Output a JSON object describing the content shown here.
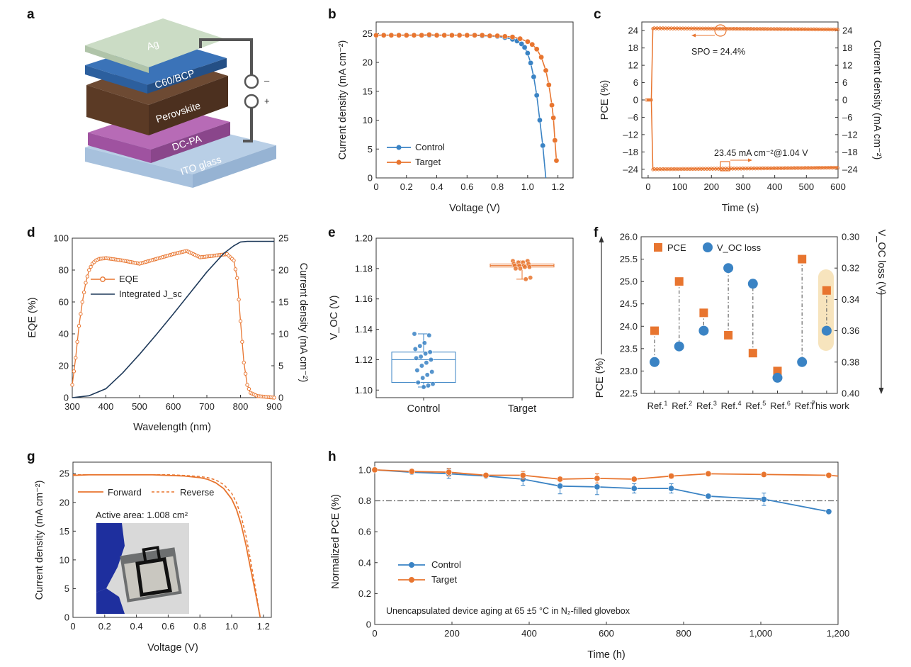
{
  "colors": {
    "control": "#3a83c4",
    "target": "#e8752f",
    "integrated_jsc": "#1f3a5a",
    "this_work": "#d62c2c",
    "highlight": "#f7e4bd",
    "reference_line": "#666666"
  },
  "chart_data": [
    {
      "panel": "a",
      "type": "diagram",
      "layers": [
        "Ag",
        "C60/BCP",
        "Perovskite",
        "DC-PA",
        "ITO glass"
      ],
      "terminal_minus": "–",
      "terminal_plus": "+"
    },
    {
      "panel": "b",
      "type": "line",
      "xlabel": "Voltage (V)",
      "ylabel": "Current density (mA cm⁻²)",
      "xlim": [
        0,
        1.3
      ],
      "ylim": [
        0,
        27
      ],
      "xticks": [
        "0",
        "0.2",
        "0.4",
        "0.6",
        "0.8",
        "1.0",
        "1.2"
      ],
      "yticks": [
        "0",
        "5",
        "10",
        "15",
        "20",
        "25"
      ],
      "legend_position": "bottom-left",
      "series": [
        {
          "name": "Control",
          "x": [
            0,
            0.05,
            0.1,
            0.15,
            0.2,
            0.25,
            0.3,
            0.35,
            0.4,
            0.45,
            0.5,
            0.55,
            0.6,
            0.65,
            0.7,
            0.75,
            0.8,
            0.85,
            0.9,
            0.93,
            0.96,
            0.98,
            1.0,
            1.02,
            1.04,
            1.06,
            1.08,
            1.1,
            1.12
          ],
          "y": [
            24.7,
            24.7,
            24.7,
            24.7,
            24.7,
            24.7,
            24.7,
            24.7,
            24.7,
            24.7,
            24.7,
            24.7,
            24.7,
            24.7,
            24.6,
            24.6,
            24.5,
            24.3,
            24.0,
            23.7,
            23.2,
            22.6,
            21.6,
            19.9,
            17.5,
            14.3,
            10.0,
            5.6,
            0
          ]
        },
        {
          "name": "Target",
          "x": [
            0,
            0.05,
            0.1,
            0.15,
            0.2,
            0.25,
            0.3,
            0.35,
            0.4,
            0.45,
            0.5,
            0.55,
            0.6,
            0.65,
            0.7,
            0.75,
            0.8,
            0.85,
            0.9,
            0.95,
            1.0,
            1.03,
            1.06,
            1.09,
            1.12,
            1.14,
            1.16,
            1.17,
            1.18,
            1.19
          ],
          "y": [
            24.7,
            24.7,
            24.7,
            24.7,
            24.7,
            24.7,
            24.7,
            24.8,
            24.7,
            24.7,
            24.7,
            24.7,
            24.7,
            24.7,
            24.7,
            24.6,
            24.6,
            24.5,
            24.4,
            24.1,
            23.6,
            23.1,
            22.3,
            20.9,
            18.6,
            16.1,
            12.6,
            10.4,
            6.5,
            3.0
          ]
        }
      ]
    },
    {
      "panel": "c",
      "type": "line",
      "xlabel": "Time (s)",
      "ylabel": "PCE (%)",
      "ylabel_right": "Current density (mA cm⁻²)",
      "xlim": [
        -20,
        600
      ],
      "ylim": [
        -27,
        27
      ],
      "xticks": [
        "0",
        "100",
        "200",
        "300",
        "400",
        "500",
        "600"
      ],
      "yticks": [
        "–24",
        "–18",
        "–12",
        "–6",
        "0",
        "6",
        "12",
        "18",
        "24"
      ],
      "yticks_right": [
        "–24",
        "–18",
        "–12",
        "–6",
        "0",
        "6",
        "12",
        "18",
        "24"
      ],
      "annotations": [
        "SPO = 24.4%",
        "23.45 mA cm⁻²@1.04 V"
      ],
      "series": [
        {
          "name": "PCE",
          "x": [
            -5,
            10,
            15,
            600
          ],
          "y": [
            0,
            0,
            24.8,
            24.4
          ]
        },
        {
          "name": "Current density",
          "x": [
            -5,
            10,
            15,
            600
          ],
          "y": [
            0,
            0,
            -24.0,
            -23.45
          ]
        }
      ]
    },
    {
      "panel": "d",
      "type": "line",
      "xlabel": "Wavelength (nm)",
      "ylabel": "EQE (%)",
      "ylabel_right": "Current density (mA cm⁻²)",
      "xlim": [
        300,
        900
      ],
      "ylim": [
        0,
        100
      ],
      "ylim_right": [
        0,
        25
      ],
      "xticks": [
        "300",
        "400",
        "500",
        "600",
        "700",
        "800",
        "900"
      ],
      "yticks": [
        "0",
        "20",
        "40",
        "60",
        "80",
        "100"
      ],
      "yticks_right": [
        "0",
        "5",
        "10",
        "15",
        "20",
        "25"
      ],
      "legend_position": "top-left",
      "series": [
        {
          "name": "EQE",
          "x": [
            300,
            310,
            320,
            330,
            340,
            350,
            360,
            370,
            380,
            400,
            450,
            500,
            550,
            600,
            640,
            680,
            720,
            760,
            780,
            790,
            800,
            810,
            820,
            830,
            850,
            900
          ],
          "y": [
            8,
            25,
            45,
            60,
            72,
            80,
            84,
            86,
            87,
            87.5,
            86,
            84,
            87,
            90,
            92,
            88,
            89,
            90,
            86,
            75,
            48,
            22,
            8,
            3,
            1,
            0
          ]
        },
        {
          "name": "Integrated J_sc",
          "x": [
            300,
            350,
            400,
            450,
            500,
            550,
            600,
            650,
            700,
            750,
            780,
            800,
            820,
            900
          ],
          "y": [
            0,
            0.3,
            1.4,
            3.9,
            6.8,
            9.9,
            13.1,
            16.4,
            19.7,
            22.6,
            23.8,
            24.4,
            24.5,
            24.5
          ]
        }
      ]
    },
    {
      "panel": "e",
      "type": "box",
      "ylabel": "V_OC (V)",
      "ylim": [
        1.095,
        1.2
      ],
      "yticks": [
        "1.10",
        "1.12",
        "1.14",
        "1.16",
        "1.18",
        "1.20"
      ],
      "categories": [
        "Control",
        "Target"
      ],
      "boxes": [
        {
          "name": "Control",
          "whisker_low": 1.102,
          "q1": 1.105,
          "median": 1.12,
          "q3": 1.125,
          "whisker_high": 1.137,
          "points": [
            1.137,
            1.136,
            1.131,
            1.129,
            1.127,
            1.125,
            1.124,
            1.122,
            1.121,
            1.12,
            1.118,
            1.116,
            1.113,
            1.112,
            1.11,
            1.108,
            1.105,
            1.104,
            1.103,
            1.102
          ]
        },
        {
          "name": "Target",
          "whisker_low": 1.173,
          "q1": 1.181,
          "median": 1.182,
          "q3": 1.183,
          "whisker_high": 1.185,
          "points": [
            1.185,
            1.185,
            1.184,
            1.184,
            1.183,
            1.183,
            1.182,
            1.182,
            1.182,
            1.181,
            1.181,
            1.18,
            1.18,
            1.174,
            1.173
          ]
        }
      ]
    },
    {
      "panel": "f",
      "type": "scatter",
      "ylabel": "PCE (%)",
      "ylabel_right": "V_OC loss (V)",
      "ylim": [
        22.5,
        26.0
      ],
      "ylim_right": [
        0.4,
        0.3
      ],
      "yticks": [
        "22.5",
        "23.0",
        "23.5",
        "24.0",
        "24.5",
        "25.0",
        "25.5",
        "26.0"
      ],
      "yticks_right": [
        "0.30",
        "0.32",
        "0.34",
        "0.36",
        "0.38",
        "0.40"
      ],
      "categories": [
        "Ref. 1",
        "Ref. 2",
        "Ref. 3",
        "Ref. 4",
        "Ref. 5",
        "Ref. 6",
        "Ref. 7",
        "This work"
      ],
      "category_base": [
        "Ref.",
        "Ref.",
        "Ref.",
        "Ref.",
        "Ref.",
        "Ref.",
        "Ref.",
        "This work"
      ],
      "category_sup": [
        "1",
        "2",
        "3",
        "4",
        "5",
        "6",
        "7",
        ""
      ],
      "legend_position": "top-left",
      "series": [
        {
          "name": "PCE",
          "values": [
            23.9,
            25.0,
            24.3,
            23.8,
            23.4,
            23.0,
            25.5,
            24.8
          ]
        },
        {
          "name": "V_OC loss",
          "values": [
            0.38,
            0.37,
            0.36,
            0.32,
            0.33,
            0.39,
            0.38,
            0.36
          ]
        }
      ]
    },
    {
      "panel": "g",
      "type": "line",
      "xlabel": "Voltage (V)",
      "ylabel": "Current density (mA cm⁻²)",
      "xlim": [
        0,
        1.25
      ],
      "ylim": [
        0,
        27
      ],
      "xticks": [
        "0",
        "0.2",
        "0.4",
        "0.6",
        "0.8",
        "1.0",
        "1.2"
      ],
      "yticks": [
        "0",
        "5",
        "10",
        "15",
        "20",
        "25"
      ],
      "inset_text": "Active area: 1.008 cm²",
      "legend_position": "top",
      "series": [
        {
          "name": "Forward",
          "x": [
            0,
            0.1,
            0.2,
            0.3,
            0.4,
            0.5,
            0.6,
            0.7,
            0.8,
            0.85,
            0.9,
            0.95,
            1.0,
            1.03,
            1.06,
            1.09,
            1.12,
            1.15,
            1.18
          ],
          "y": [
            24.7,
            24.8,
            24.8,
            24.8,
            24.8,
            24.8,
            24.7,
            24.6,
            24.3,
            24.0,
            23.4,
            22.4,
            20.6,
            18.8,
            16.2,
            12.6,
            8.4,
            4.3,
            0
          ]
        },
        {
          "name": "Reverse",
          "x": [
            0,
            0.1,
            0.2,
            0.3,
            0.4,
            0.5,
            0.6,
            0.7,
            0.8,
            0.85,
            0.9,
            0.95,
            1.0,
            1.03,
            1.06,
            1.09,
            1.12,
            1.15,
            1.18
          ],
          "y": [
            24.8,
            24.8,
            24.8,
            24.8,
            24.8,
            24.8,
            24.8,
            24.7,
            24.5,
            24.3,
            23.9,
            23.1,
            21.6,
            20.0,
            17.6,
            14.2,
            9.8,
            5.0,
            0
          ]
        }
      ]
    },
    {
      "panel": "h",
      "type": "line",
      "xlabel": "Time (h)",
      "ylabel": "Normalized PCE (%)",
      "xlim": [
        0,
        1200
      ],
      "ylim": [
        0,
        1.05
      ],
      "xticks": [
        "0",
        "200",
        "400",
        "600",
        "800",
        "1,000",
        "1,200"
      ],
      "yticks": [
        "0",
        "0.2",
        "0.4",
        "0.6",
        "0.8",
        "1.0"
      ],
      "reference_line": 0.8,
      "annotation": "Unencapsulated device aging at 65 ±5 °C in N₂-filled glovebox",
      "legend_position": "bottom-left",
      "series": [
        {
          "name": "Control",
          "x": [
            0,
            96,
            192,
            288,
            384,
            480,
            576,
            672,
            768,
            864,
            1008,
            1176
          ],
          "y": [
            1.0,
            0.985,
            0.975,
            0.96,
            0.94,
            0.895,
            0.89,
            0.88,
            0.88,
            0.83,
            0.81,
            0.73
          ],
          "err": [
            0,
            0.01,
            0.03,
            0.01,
            0.04,
            0.05,
            0.05,
            0.03,
            0.03,
            0.01,
            0.04,
            0
          ]
        },
        {
          "name": "Target",
          "x": [
            0,
            96,
            192,
            288,
            384,
            480,
            576,
            672,
            768,
            864,
            1008,
            1176,
            1200
          ],
          "y": [
            1.0,
            0.99,
            0.985,
            0.965,
            0.965,
            0.94,
            0.945,
            0.94,
            0.96,
            0.975,
            0.97,
            0.965,
            0.96
          ],
          "err": [
            0,
            0.015,
            0.025,
            0.01,
            0.025,
            0.01,
            0.03,
            0.01,
            0.015,
            0.01,
            0.01,
            0.01,
            0
          ]
        }
      ]
    }
  ]
}
